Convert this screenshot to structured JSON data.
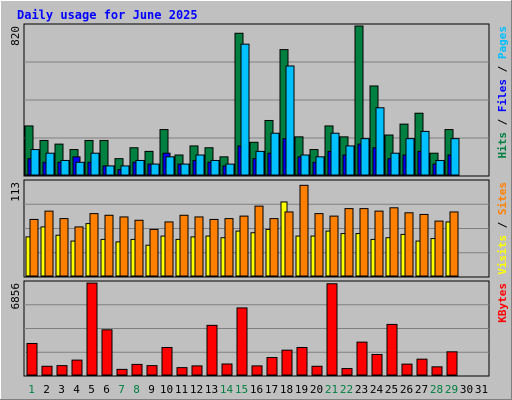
{
  "chart_data": {
    "type": "bar",
    "title": "Daily usage for June 2025",
    "categories": [
      "1",
      "2",
      "3",
      "4",
      "5",
      "6",
      "7",
      "8",
      "9",
      "10",
      "11",
      "12",
      "13",
      "14",
      "15",
      "16",
      "17",
      "18",
      "19",
      "20",
      "21",
      "22",
      "23",
      "24",
      "25",
      "26",
      "27",
      "28",
      "29",
      "30",
      "31"
    ],
    "weekend_days": [
      "1",
      "7",
      "8",
      "14",
      "15",
      "21",
      "22",
      "28",
      "29"
    ],
    "colors": {
      "hits": "#008040",
      "files": "#0000ff",
      "pages": "#00c0ff",
      "visits": "#ffff00",
      "sites": "#ff8000",
      "kbytes": "#ff0000",
      "title": "#0000ff",
      "weekend_label": "#008040",
      "plot_bg": "#c0c0c0",
      "grid": "#808080"
    },
    "panels": [
      {
        "id": "hits-panel",
        "max_label": "820",
        "ylim": [
          0,
          820
        ],
        "ylabel_parts": [
          {
            "text": "Hits",
            "color": "#008040"
          },
          {
            "text": " / ",
            "color": "#000000"
          },
          {
            "text": "Files",
            "color": "#0000ff"
          },
          {
            "text": " / ",
            "color": "#000000"
          },
          {
            "text": "Pages",
            "color": "#00c0ff"
          }
        ],
        "series": [
          {
            "name": "Hits",
            "color": "#008040",
            "values": [
              270,
              190,
              170,
              140,
              190,
              190,
              90,
              150,
              130,
              250,
              110,
              160,
              150,
              100,
              780,
              180,
              300,
              690,
              210,
              140,
              270,
              210,
              820,
              490,
              220,
              280,
              340,
              120,
              250,
              0,
              0
            ]
          },
          {
            "name": "Files",
            "color": "#0000ff",
            "values": [
              90,
              70,
              70,
              100,
              70,
              50,
              30,
              70,
              60,
              120,
              60,
              80,
              70,
              50,
              160,
              90,
              120,
              200,
              100,
              70,
              130,
              110,
              170,
              150,
              90,
              110,
              130,
              60,
              110,
              0,
              0
            ]
          },
          {
            "name": "Pages",
            "color": "#00c0ff",
            "values": [
              140,
              120,
              80,
              70,
              120,
              50,
              50,
              80,
              60,
              100,
              60,
              110,
              80,
              60,
              720,
              130,
              230,
              600,
              110,
              100,
              230,
              160,
              200,
              370,
              120,
              200,
              240,
              80,
              200,
              0,
              0
            ]
          }
        ]
      },
      {
        "id": "visits-panel",
        "max_label": "113",
        "ylim": [
          0,
          113
        ],
        "ylabel_parts": [
          {
            "text": "Visits",
            "color": "#ffff00"
          },
          {
            "text": " / ",
            "color": "#000000"
          },
          {
            "text": "Sites",
            "color": "#ff8000"
          }
        ],
        "series": [
          {
            "name": "Visits",
            "color": "#ffff00",
            "values": [
              47,
              59,
              49,
              42,
              63,
              44,
              41,
              44,
              37,
              48,
              44,
              47,
              48,
              46,
              54,
              52,
              56,
              89,
              48,
              48,
              54,
              51,
              51,
              44,
              46,
              50,
              42,
              45,
              65,
              0,
              0
            ]
          },
          {
            "name": "Sites",
            "color": "#ff8000",
            "values": [
              68,
              78,
              69,
              59,
              75,
              73,
              71,
              67,
              56,
              65,
              73,
              71,
              68,
              69,
              72,
              84,
              69,
              77,
              109,
              75,
              72,
              81,
              81,
              78,
              82,
              76,
              74,
              66,
              77,
              0,
              0
            ]
          }
        ]
      },
      {
        "id": "kbytes-panel",
        "max_label": "6856",
        "ylim": [
          0,
          6856
        ],
        "ylabel_parts": [
          {
            "text": "KBytes",
            "color": "#ff0000"
          }
        ],
        "series": [
          {
            "name": "KBytes",
            "color": "#ff0000",
            "values": [
              2350,
              650,
              700,
              1110,
              6850,
              3370,
              420,
              790,
              700,
              2050,
              550,
              680,
              3700,
              820,
              5000,
              680,
              1300,
              1850,
              2050,
              650,
              6800,
              480,
              2450,
              1530,
              3770,
              810,
              1180,
              610,
              1730,
              0,
              0
            ]
          }
        ]
      }
    ]
  }
}
